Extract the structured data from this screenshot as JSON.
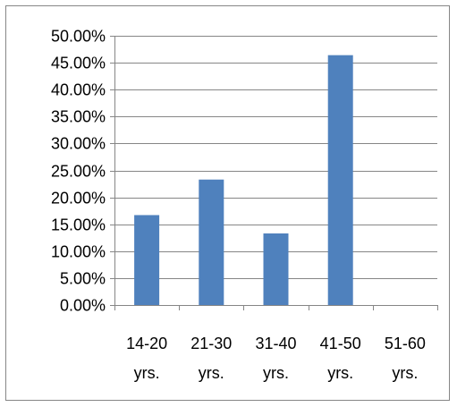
{
  "chart_data": {
    "type": "bar",
    "title": "",
    "xlabel": "",
    "ylabel": "",
    "categories": [
      [
        "14-20",
        "yrs."
      ],
      [
        "21-30",
        "yrs."
      ],
      [
        "31-40",
        "yrs."
      ],
      [
        "41-50",
        "yrs."
      ],
      [
        "51-60",
        "yrs."
      ]
    ],
    "values": [
      16.7,
      23.3,
      13.3,
      46.4,
      0.0
    ],
    "ylim": [
      0,
      50
    ],
    "yticks": [
      "0.00%",
      "5.00%",
      "10.00%",
      "15.00%",
      "20.00%",
      "25.00%",
      "30.00%",
      "35.00%",
      "40.00%",
      "45.00%",
      "50.00%"
    ],
    "grid": true,
    "legend": "none",
    "bar_color": "#4F81BD"
  }
}
